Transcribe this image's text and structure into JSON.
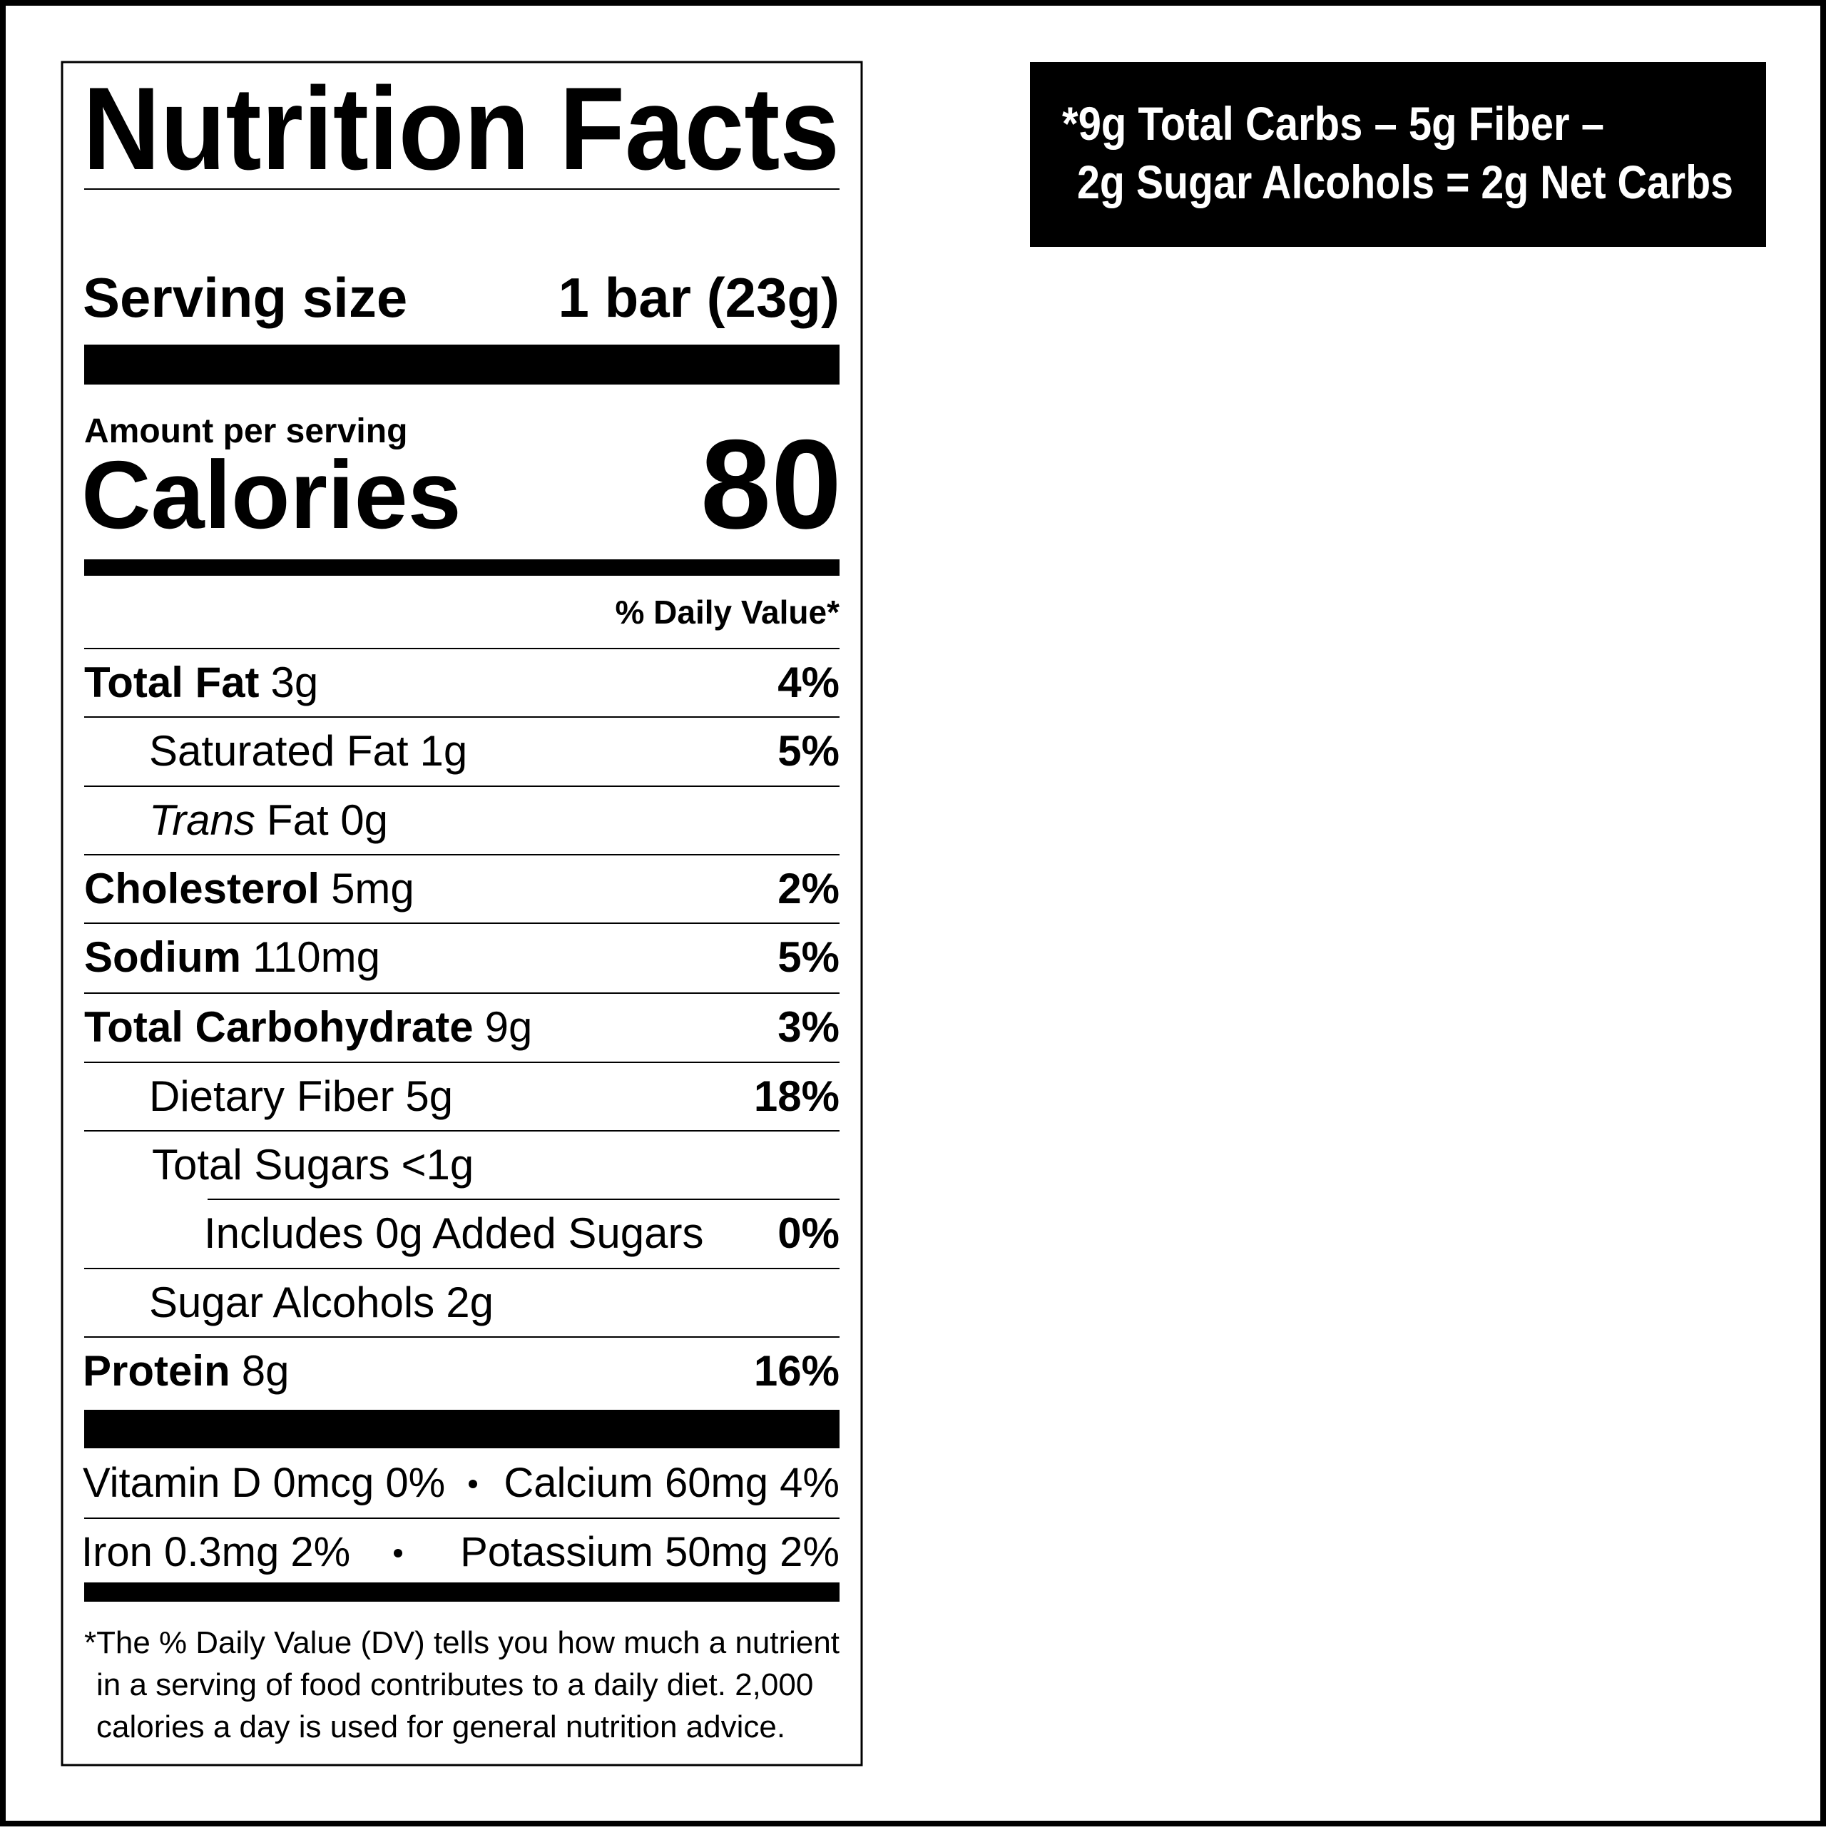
{
  "label": {
    "title": "Nutrition Facts",
    "serving": {
      "label": "Serving size",
      "value": "1 bar (23g)"
    },
    "amount_per_serving": "Amount per serving",
    "calories": {
      "label": "Calories",
      "value": "80"
    },
    "dv_header": "% Daily Value*",
    "rows": [
      {
        "name": "Total Fat",
        "amount": "3g",
        "dv": "4%"
      },
      {
        "name": "Saturated Fat",
        "amount": "1g",
        "dv": "5%"
      },
      {
        "name": "Trans",
        "amount": "Fat 0g"
      },
      {
        "name": "Cholesterol",
        "amount": "5mg",
        "dv": "2%"
      },
      {
        "name": "Sodium",
        "amount": "110mg",
        "dv": "5%"
      },
      {
        "name": "Total Carbohydrate",
        "amount": "9g",
        "dv": "3%"
      },
      {
        "name": "Dietary Fiber",
        "amount": "5g",
        "dv": "18%"
      },
      {
        "name": "Total Sugars",
        "amount": "<1g"
      },
      {
        "name": "Includes 0g Added Sugars",
        "dv": "0%"
      },
      {
        "name": "Sugar Alcohols",
        "amount": "2g"
      },
      {
        "name": "Protein",
        "amount": "8g",
        "dv": "16%"
      }
    ],
    "minerals": [
      [
        "Vitamin D 0mcg 0%",
        "Calcium 60mg 4%"
      ],
      [
        "Iron 0.3mg 2%",
        "Potassium 50mg 2%"
      ]
    ],
    "footnote": [
      "*The % Daily Value (DV) tells you how much a nutrient",
      "in a serving of food contributes to a daily diet. 2,000",
      "calories a day is used for general nutrition advice."
    ]
  },
  "net_carbs": [
    "*9g Total Carbs – 5g Fiber –",
    "2g Sugar Alcohols = 2g Net Carbs"
  ]
}
